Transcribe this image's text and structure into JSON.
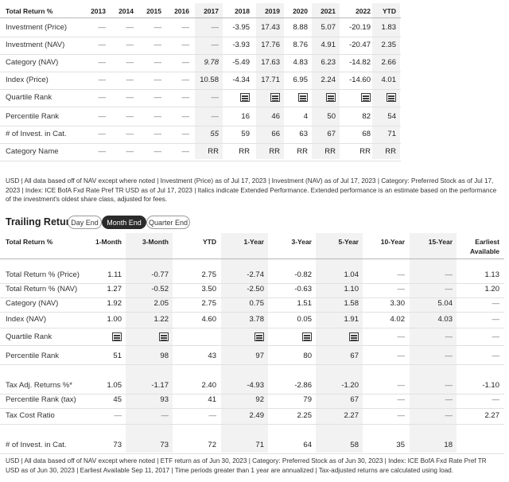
{
  "annual": {
    "header_label": "Total Return %",
    "years": [
      "2013",
      "2014",
      "2015",
      "2016",
      "2017",
      "2018",
      "2019",
      "2020",
      "2021",
      "2022",
      "YTD"
    ],
    "rows": [
      {
        "label": "Investment (Price)",
        "cells": [
          {
            "v": "—"
          },
          {
            "v": "—"
          },
          {
            "v": "—"
          },
          {
            "v": "—"
          },
          {
            "v": "—"
          },
          {
            "v": "-3.95"
          },
          {
            "v": "17.43"
          },
          {
            "v": "8.88"
          },
          {
            "v": "5.07"
          },
          {
            "v": "-20.19"
          },
          {
            "v": "1.83"
          }
        ]
      },
      {
        "label": "Investment (NAV)",
        "cells": [
          {
            "v": "—"
          },
          {
            "v": "—"
          },
          {
            "v": "—"
          },
          {
            "v": "—"
          },
          {
            "v": "—"
          },
          {
            "v": "-3.93"
          },
          {
            "v": "17.76"
          },
          {
            "v": "8.76"
          },
          {
            "v": "4.91"
          },
          {
            "v": "-20.47"
          },
          {
            "v": "2.35"
          }
        ]
      },
      {
        "label": "Category (NAV)",
        "cells": [
          {
            "v": "—"
          },
          {
            "v": "—"
          },
          {
            "v": "—"
          },
          {
            "v": "—"
          },
          {
            "v": "9.78",
            "italic": true
          },
          {
            "v": "-5.49"
          },
          {
            "v": "17.63"
          },
          {
            "v": "4.83"
          },
          {
            "v": "6.23"
          },
          {
            "v": "-14.82"
          },
          {
            "v": "2.66"
          }
        ]
      },
      {
        "label": "Index (Price)",
        "cells": [
          {
            "v": "—"
          },
          {
            "v": "—"
          },
          {
            "v": "—"
          },
          {
            "v": "—"
          },
          {
            "v": "10.58"
          },
          {
            "v": "-4.34"
          },
          {
            "v": "17.71"
          },
          {
            "v": "6.95"
          },
          {
            "v": "2.24"
          },
          {
            "v": "-14.60"
          },
          {
            "v": "4.01"
          }
        ]
      },
      {
        "label": "Quartile Rank",
        "cells": [
          {
            "v": "—"
          },
          {
            "v": "—"
          },
          {
            "v": "—"
          },
          {
            "v": "—"
          },
          {
            "v": "—"
          },
          {
            "q": 4
          },
          {
            "q": 3
          },
          {
            "q": 3
          },
          {
            "q": 3
          },
          {
            "q": 4
          },
          {
            "q": 4
          }
        ]
      },
      {
        "label": "Percentile Rank",
        "cells": [
          {
            "v": "—"
          },
          {
            "v": "—"
          },
          {
            "v": "—"
          },
          {
            "v": "—"
          },
          {
            "v": "—"
          },
          {
            "v": "16"
          },
          {
            "v": "46"
          },
          {
            "v": "4"
          },
          {
            "v": "50"
          },
          {
            "v": "82"
          },
          {
            "v": "54"
          }
        ]
      },
      {
        "label": "# of Invest. in Cat.",
        "cells": [
          {
            "v": "—"
          },
          {
            "v": "—"
          },
          {
            "v": "—"
          },
          {
            "v": "—"
          },
          {
            "v": "55",
            "italic": true
          },
          {
            "v": "59"
          },
          {
            "v": "66"
          },
          {
            "v": "63"
          },
          {
            "v": "67"
          },
          {
            "v": "68"
          },
          {
            "v": "71"
          }
        ]
      },
      {
        "label": "Category Name",
        "cells": [
          {
            "v": "—"
          },
          {
            "v": "—"
          },
          {
            "v": "—"
          },
          {
            "v": "—"
          },
          {
            "v": "RR"
          },
          {
            "v": "RR"
          },
          {
            "v": "RR"
          },
          {
            "v": "RR"
          },
          {
            "v": "RR"
          },
          {
            "v": "RR"
          },
          {
            "v": "RR"
          }
        ]
      }
    ],
    "note": "USD | All data based off of NAV except where noted | Investment (Price) as of Jul 17, 2023 | Investment (NAV) as of Jul 17, 2023 | Category: Preferred Stock as of Jul 17, 2023 | Index: ICE BofA Fxd Rate Pref TR USD as of Jul 17, 2023 | Italics indicate Extended Performance. Extended performance is an estimate based on the performance of the investment's oldest share class, adjusted for fees."
  },
  "trailing": {
    "title": "Trailing Returns",
    "tabs": [
      {
        "label": "Day End",
        "active": false
      },
      {
        "label": "Month End",
        "active": true
      },
      {
        "label": "Quarter End",
        "active": false
      }
    ],
    "header_label": "Total Return %",
    "columns": [
      "1-Month",
      "3-Month",
      "YTD",
      "1-Year",
      "3-Year",
      "5-Year",
      "10-Year",
      "15-Year",
      "Earliest Available"
    ],
    "rows": [
      {
        "label": "Total Return % (Price)",
        "cells": [
          {
            "v": "1.11"
          },
          {
            "v": "-0.77"
          },
          {
            "v": "2.75"
          },
          {
            "v": "-2.74"
          },
          {
            "v": "-0.82"
          },
          {
            "v": "1.04"
          },
          {
            "v": "—"
          },
          {
            "v": "—"
          },
          {
            "v": "1.13"
          }
        ]
      },
      {
        "label": "Total Return % (NAV)",
        "cells": [
          {
            "v": "1.27"
          },
          {
            "v": "-0.52"
          },
          {
            "v": "3.50"
          },
          {
            "v": "-2.50"
          },
          {
            "v": "-0.63"
          },
          {
            "v": "1.10"
          },
          {
            "v": "—"
          },
          {
            "v": "—"
          },
          {
            "v": "1.20"
          }
        ]
      },
      {
        "label": "Category (NAV)",
        "cells": [
          {
            "v": "1.92"
          },
          {
            "v": "2.05"
          },
          {
            "v": "2.75"
          },
          {
            "v": "0.75"
          },
          {
            "v": "1.51"
          },
          {
            "v": "1.58"
          },
          {
            "v": "3.30"
          },
          {
            "v": "5.04"
          },
          {
            "v": "—"
          }
        ]
      },
      {
        "label": "Index (NAV)",
        "cells": [
          {
            "v": "1.00"
          },
          {
            "v": "1.22"
          },
          {
            "v": "4.60"
          },
          {
            "v": "3.78"
          },
          {
            "v": "0.05"
          },
          {
            "v": "1.91"
          },
          {
            "v": "4.02"
          },
          {
            "v": "4.03"
          },
          {
            "v": "—"
          }
        ]
      },
      {
        "label": "Quartile Rank",
        "cells": [
          {
            "q": 3
          },
          {
            "q": 4
          },
          {
            "v": ""
          },
          {
            "q": 4
          },
          {
            "q": 4
          },
          {
            "q": 3
          },
          {
            "v": "—"
          },
          {
            "v": "—"
          },
          {
            "v": "—"
          }
        ]
      },
      {
        "label": "Percentile Rank",
        "cells": [
          {
            "v": "51"
          },
          {
            "v": "98"
          },
          {
            "v": "43"
          },
          {
            "v": "97"
          },
          {
            "v": "80"
          },
          {
            "v": "67"
          },
          {
            "v": "—"
          },
          {
            "v": "—"
          },
          {
            "v": "—"
          }
        ]
      },
      {
        "label": "Tax Adj. Returns %*",
        "cells": [
          {
            "v": "1.05"
          },
          {
            "v": "-1.17"
          },
          {
            "v": "2.40"
          },
          {
            "v": "-4.93"
          },
          {
            "v": "-2.86"
          },
          {
            "v": "-1.20"
          },
          {
            "v": "—"
          },
          {
            "v": "—"
          },
          {
            "v": "-1.10"
          }
        ]
      },
      {
        "label": "Percentile Rank (tax)",
        "cells": [
          {
            "v": "45"
          },
          {
            "v": "93"
          },
          {
            "v": "41"
          },
          {
            "v": "92"
          },
          {
            "v": "79"
          },
          {
            "v": "67"
          },
          {
            "v": "—"
          },
          {
            "v": "—"
          },
          {
            "v": "—"
          }
        ]
      },
      {
        "label": "Tax Cost Ratio",
        "cells": [
          {
            "v": "—"
          },
          {
            "v": "—"
          },
          {
            "v": "—"
          },
          {
            "v": "2.49"
          },
          {
            "v": "2.25"
          },
          {
            "v": "2.27"
          },
          {
            "v": "—"
          },
          {
            "v": "—"
          },
          {
            "v": "2.27"
          }
        ]
      },
      {
        "label": "# of Invest. in Cat.",
        "cells": [
          {
            "v": "73"
          },
          {
            "v": "73"
          },
          {
            "v": "72"
          },
          {
            "v": "71"
          },
          {
            "v": "64"
          },
          {
            "v": "58"
          },
          {
            "v": "35"
          },
          {
            "v": "18"
          },
          {
            "v": ""
          }
        ]
      }
    ],
    "note": "USD | All data based off of NAV except where noted | ETF return as of Jun 30, 2023 | Category: Preferred Stock as of Jun 30, 2023 | Index: ICE BofA Fxd Rate Pref TR USD as of Jun 30, 2023 | Earliest Available Sep 11, 2017 | Time periods greater than 1 year are annualized | Tax-adjusted returns are calculated using load."
  },
  "icons": {
    "quartile": "quartile-rank-icon"
  },
  "colors": {
    "shade": "#f2f2f2",
    "active_tab": "#2b2b2b",
    "text": "#1e1e1e"
  }
}
